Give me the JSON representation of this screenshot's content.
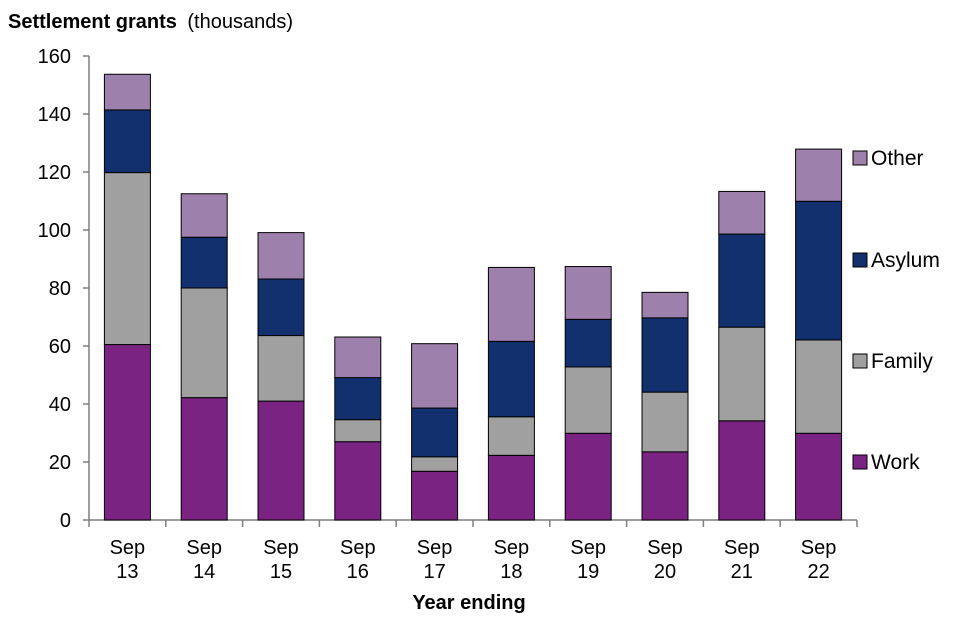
{
  "chart_data": {
    "type": "bar",
    "stacked": true,
    "title": "Settlement grants",
    "title_unit": "(thousands)",
    "xlabel": "Year ending",
    "ylabel": "",
    "ylim": [
      0,
      160
    ],
    "y_ticks": [
      0,
      20,
      40,
      60,
      80,
      100,
      120,
      140,
      160
    ],
    "grid": false,
    "legend_position": "right",
    "categories": [
      [
        "Sep",
        "13"
      ],
      [
        "Sep",
        "14"
      ],
      [
        "Sep",
        "15"
      ],
      [
        "Sep",
        "16"
      ],
      [
        "Sep",
        "17"
      ],
      [
        "Sep",
        "18"
      ],
      [
        "Sep",
        "19"
      ],
      [
        "Sep",
        "20"
      ],
      [
        "Sep",
        "21"
      ],
      [
        "Sep",
        "22"
      ]
    ],
    "series": [
      {
        "name": "Work",
        "color": "#7b2382",
        "values": [
          60.5,
          42.2,
          41.0,
          27.0,
          16.8,
          22.3,
          29.9,
          23.5,
          34.2,
          29.9
        ]
      },
      {
        "name": "Family",
        "color": "#a0a0a0",
        "values": [
          59.3,
          37.8,
          22.6,
          7.6,
          5.0,
          13.3,
          22.9,
          20.6,
          32.3,
          32.2
        ]
      },
      {
        "name": "Asylum",
        "color": "#13306e",
        "values": [
          21.6,
          17.5,
          19.5,
          14.5,
          16.8,
          26.0,
          16.4,
          25.6,
          32.1,
          47.8
        ]
      },
      {
        "name": "Other",
        "color": "#9e80ac",
        "values": [
          12.3,
          15.0,
          16.0,
          14.0,
          22.2,
          25.5,
          18.2,
          8.8,
          14.7,
          18.0
        ]
      }
    ],
    "legend_order": [
      "Other",
      "Asylum",
      "Family",
      "Work"
    ]
  }
}
